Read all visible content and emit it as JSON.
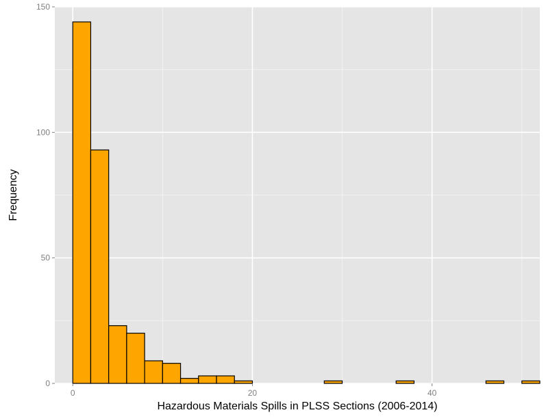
{
  "chart_data": {
    "type": "bar",
    "subtype": "histogram",
    "title": "",
    "xlabel": "Hazardous Materials Spills in PLSS Sections (2006-2014)",
    "ylabel": "Frequency",
    "xlim": [
      -2,
      52
    ],
    "ylim": [
      0,
      150
    ],
    "x_ticks": [
      0,
      20,
      40
    ],
    "y_ticks": [
      0,
      50,
      100,
      150
    ],
    "grid": true,
    "bin_width": 2,
    "bins": [
      {
        "start": -2,
        "end": 0,
        "count": 0
      },
      {
        "start": 0,
        "end": 2,
        "count": 144
      },
      {
        "start": 2,
        "end": 4,
        "count": 93
      },
      {
        "start": 4,
        "end": 6,
        "count": 23
      },
      {
        "start": 6,
        "end": 8,
        "count": 20
      },
      {
        "start": 8,
        "end": 10,
        "count": 9
      },
      {
        "start": 10,
        "end": 12,
        "count": 8
      },
      {
        "start": 12,
        "end": 14,
        "count": 2
      },
      {
        "start": 14,
        "end": 16,
        "count": 3
      },
      {
        "start": 16,
        "end": 18,
        "count": 3
      },
      {
        "start": 18,
        "end": 20,
        "count": 1
      },
      {
        "start": 20,
        "end": 22,
        "count": 0
      },
      {
        "start": 22,
        "end": 24,
        "count": 0
      },
      {
        "start": 24,
        "end": 26,
        "count": 0
      },
      {
        "start": 26,
        "end": 28,
        "count": 0
      },
      {
        "start": 28,
        "end": 30,
        "count": 1
      },
      {
        "start": 30,
        "end": 32,
        "count": 0
      },
      {
        "start": 32,
        "end": 34,
        "count": 0
      },
      {
        "start": 34,
        "end": 36,
        "count": 0
      },
      {
        "start": 36,
        "end": 38,
        "count": 1
      },
      {
        "start": 38,
        "end": 40,
        "count": 0
      },
      {
        "start": 40,
        "end": 42,
        "count": 0
      },
      {
        "start": 42,
        "end": 44,
        "count": 0
      },
      {
        "start": 44,
        "end": 46,
        "count": 0
      },
      {
        "start": 46,
        "end": 48,
        "count": 1
      },
      {
        "start": 48,
        "end": 50,
        "count": 0
      },
      {
        "start": 50,
        "end": 52,
        "count": 1
      }
    ],
    "colors": {
      "panel_background": "#e5e5e5",
      "grid_major": "#ffffff",
      "grid_minor": "#f2f2f2",
      "bar_fill": "#ffa500",
      "bar_outline": "#000000",
      "tick_label": "#7f7f7f"
    }
  }
}
